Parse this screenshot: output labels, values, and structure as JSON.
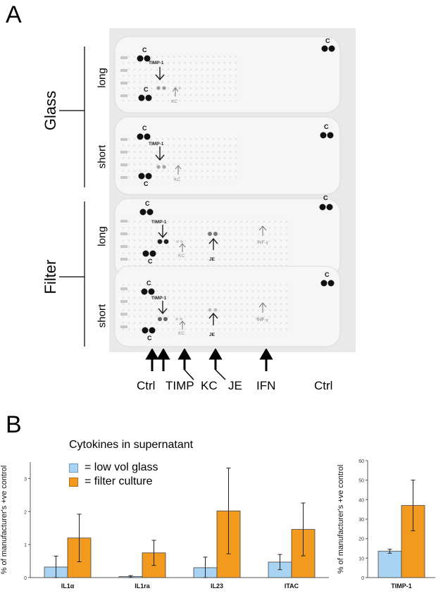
{
  "panel_a": {
    "letter": "A",
    "groups": [
      {
        "label": "Glass",
        "rows": [
          "long",
          "short"
        ]
      },
      {
        "label": "Filter",
        "rows": [
          "long",
          "short"
        ]
      }
    ],
    "spot_labels": {
      "c": "C",
      "timp": "TIMP-1",
      "kc": "KC",
      "je": "JE",
      "inf": "INF-γ"
    },
    "bottom_labels": [
      "Ctrl",
      "TIMP",
      "KC",
      "JE",
      "IFN",
      "Ctrl"
    ]
  },
  "panel_b": {
    "letter": "B",
    "legend_title": "Cytokines in supernatant",
    "legend": [
      {
        "label": "= low vol glass",
        "color": "#a9d3f2"
      },
      {
        "label": "= filter culture",
        "color": "#f29a1e"
      }
    ]
  },
  "chart_data": [
    {
      "type": "bar",
      "ylabel": "% of manufacturer's +ve control",
      "ylim": [
        0,
        3.5
      ],
      "yticks": [
        "0",
        "1",
        "2",
        "3"
      ],
      "categories": [
        "IL1α",
        "IL1ra",
        "IL23",
        "ITAC"
      ],
      "series": [
        {
          "name": "= low vol glass",
          "color": "#a9d3f2",
          "values": [
            0.32,
            0.03,
            0.3,
            0.47
          ],
          "errors": [
            0.33,
            0.03,
            0.32,
            0.23
          ]
        },
        {
          "name": "= filter culture",
          "color": "#f29a1e",
          "values": [
            1.2,
            0.75,
            2.02,
            1.46
          ],
          "errors": [
            0.72,
            0.38,
            1.3,
            0.8
          ]
        }
      ]
    },
    {
      "type": "bar",
      "ylabel": "% of manufacturer's +ve control",
      "ylim": [
        0,
        60
      ],
      "yticks": [
        "0",
        "10",
        "20",
        "30",
        "40",
        "50",
        "60"
      ],
      "categories": [
        "TIMP-1"
      ],
      "series": [
        {
          "name": "= low vol glass",
          "color": "#a9d3f2",
          "values": [
            13.5
          ],
          "errors": [
            1
          ]
        },
        {
          "name": "= filter culture",
          "color": "#f29a1e",
          "values": [
            37
          ],
          "errors": [
            13
          ]
        }
      ]
    }
  ]
}
